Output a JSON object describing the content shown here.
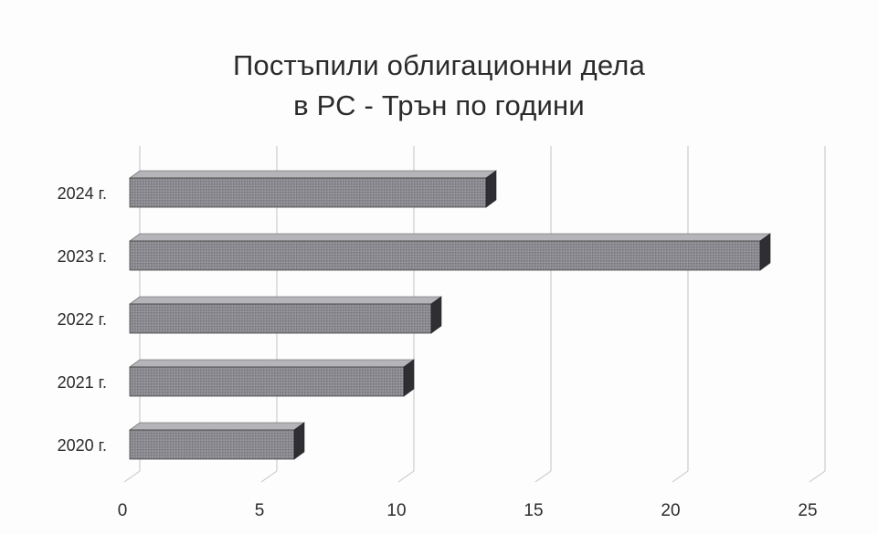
{
  "chart_data": {
    "type": "bar",
    "orientation": "horizontal",
    "title_lines": [
      "Постъпили облигационни дела",
      "в РС - Трън по години"
    ],
    "categories": [
      "2024 г.",
      "2023 г.",
      "2022 г.",
      "2021 г.",
      "2020 г."
    ],
    "values": [
      13,
      23,
      11,
      10,
      6
    ],
    "xlim": [
      0,
      25
    ],
    "xticks": [
      "0",
      "5",
      "10",
      "15",
      "20",
      "25"
    ],
    "grid": true,
    "legend": "none",
    "bar_color": "#8a8a90",
    "style": "3d"
  }
}
